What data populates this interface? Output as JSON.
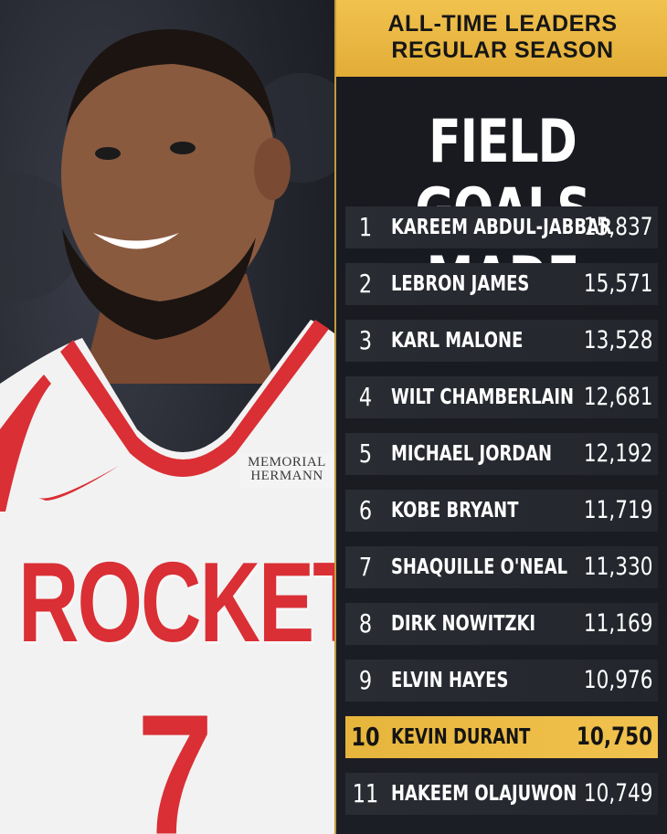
{
  "header": {
    "line1": "ALL-TIME LEADERS",
    "line2": "REGULAR SEASON"
  },
  "title": "FIELD GOALS MADE",
  "photo": {
    "jersey_text": "ROCKETS",
    "jersey_number": "7",
    "sponsor_line1": "MEMORIAL",
    "sponsor_line2": "HERMANN"
  },
  "leaders": [
    {
      "rank": "1",
      "name": "KAREEM ABDUL-JABBAR",
      "value": "15,837"
    },
    {
      "rank": "2",
      "name": "LEBRON JAMES",
      "value": "15,571"
    },
    {
      "rank": "3",
      "name": "KARL MALONE",
      "value": "13,528"
    },
    {
      "rank": "4",
      "name": "WILT CHAMBERLAIN",
      "value": "12,681"
    },
    {
      "rank": "5",
      "name": "MICHAEL JORDAN",
      "value": "12,192"
    },
    {
      "rank": "6",
      "name": "KOBE BRYANT",
      "value": "11,719"
    },
    {
      "rank": "7",
      "name": "SHAQUILLE O'NEAL",
      "value": "11,330"
    },
    {
      "rank": "8",
      "name": "DIRK NOWITZKI",
      "value": "11,169"
    },
    {
      "rank": "9",
      "name": "ELVIN HAYES",
      "value": "10,976"
    },
    {
      "rank": "10",
      "name": "KEVIN DURANT",
      "value": "10,750"
    },
    {
      "rank": "11",
      "name": "HAKEEM OLAJUWON",
      "value": "10,749"
    }
  ],
  "highlight_rank": "10",
  "colors": {
    "gold": "#f1c24e",
    "panel": "#1a1c22",
    "row": "#2a2c33",
    "jersey_red": "#d92f35"
  }
}
